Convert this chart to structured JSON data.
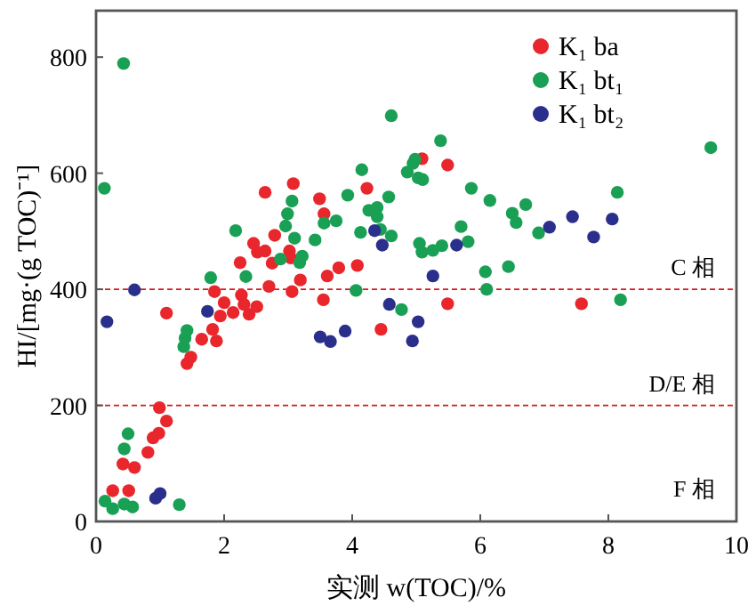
{
  "chart_data": {
    "type": "scatter",
    "xlabel": "实测 w(TOC)/%",
    "ylabel": "HI/[mg·(g TOC)⁻¹]",
    "xlim": [
      0,
      10
    ],
    "ylim": [
      0,
      880
    ],
    "xticks": [
      0,
      2,
      4,
      6,
      8,
      10
    ],
    "yticks": [
      0,
      200,
      400,
      600,
      800
    ],
    "grid": false,
    "legend": "top right",
    "marker": "circle",
    "ref_lines": [
      {
        "axis": "y",
        "value": 400,
        "label": "C 相",
        "color": "#d7191c",
        "line_style": "dashed"
      },
      {
        "axis": "y",
        "value": 200,
        "label": "D/E 相",
        "color": "#d7191c",
        "line_style": "dashed"
      }
    ],
    "annotations": [
      "F 相"
    ],
    "series": [
      {
        "name": "K₁ ba",
        "color": "#e8262b",
        "x": [
          0.26,
          0.51,
          0.42,
          0.6,
          0.81,
          0.89,
          0.98,
          1.1,
          0.99,
          1.42,
          1.48,
          1.65,
          1.88,
          1.82,
          1.94,
          2.14,
          2.39,
          2.51,
          1.1,
          4.45,
          3.08,
          2.64,
          3.49,
          3.56,
          4.23,
          5.09,
          2.46,
          2.52,
          2.64,
          2.79,
          2.25,
          2.75,
          3.02,
          3.04,
          3.19,
          3.61,
          3.79,
          4.08,
          2.7,
          3.06,
          3.55,
          1.85,
          2.0,
          2.27,
          2.31,
          5.49,
          5.49,
          7.58
        ],
        "values": [
          53,
          53,
          99,
          93,
          119,
          144,
          152,
          173,
          196,
          272,
          283,
          314,
          311,
          331,
          354,
          360,
          357,
          370,
          359,
          331,
          582,
          567,
          556,
          530,
          574,
          625,
          479,
          464,
          466,
          493,
          446,
          445,
          466,
          454,
          416,
          423,
          437,
          441,
          405,
          396,
          382,
          396,
          377,
          390,
          374,
          614,
          375,
          375
        ]
      },
      {
        "name": "K₁ bt₁",
        "color": "#1aa055",
        "x": [
          0.14,
          0.26,
          0.44,
          0.57,
          1.3,
          0.44,
          0.5,
          1.37,
          1.39,
          1.42,
          4.77,
          0.43,
          0.13,
          4.61,
          1.79,
          2.34,
          2.18,
          3.06,
          2.99,
          2.96,
          3.1,
          3.42,
          3.22,
          2.88,
          3.18,
          3.56,
          3.75,
          3.93,
          4.15,
          4.26,
          4.39,
          4.39,
          4.44,
          4.13,
          4.57,
          4.61,
          4.06,
          4.86,
          4.95,
          5.03,
          5.05,
          5.09,
          5.38,
          4.98,
          5.1,
          5.86,
          6.15,
          6.5,
          6.56,
          6.71,
          6.91,
          5.7,
          5.26,
          5.4,
          5.81,
          6.08,
          6.44,
          6.1,
          8.14,
          8.19,
          9.6
        ],
        "values": [
          35,
          22,
          30,
          25,
          29,
          125,
          151,
          301,
          316,
          329,
          365,
          789,
          574,
          699,
          420,
          422,
          501,
          552,
          530,
          509,
          488,
          485,
          457,
          452,
          446,
          514,
          518,
          562,
          606,
          536,
          541,
          525,
          503,
          498,
          559,
          492,
          398,
          602,
          617,
          592,
          479,
          464,
          656,
          624,
          589,
          574,
          553,
          531,
          515,
          546,
          497,
          508,
          467,
          475,
          482,
          430,
          439,
          400,
          567,
          382,
          644
        ]
      },
      {
        "name": "K₁ bt₂",
        "color": "#2b2f8c",
        "x": [
          0.17,
          0.93,
          1.0,
          1.74,
          3.5,
          3.66,
          3.89,
          4.58,
          5.03,
          4.94,
          0.6,
          4.35,
          4.47,
          5.63,
          5.26,
          7.08,
          7.44,
          7.77,
          8.06
        ],
        "values": [
          344,
          40,
          48,
          362,
          318,
          310,
          328,
          374,
          344,
          311,
          399,
          501,
          476,
          476,
          423,
          507,
          525,
          490,
          521
        ]
      }
    ]
  }
}
